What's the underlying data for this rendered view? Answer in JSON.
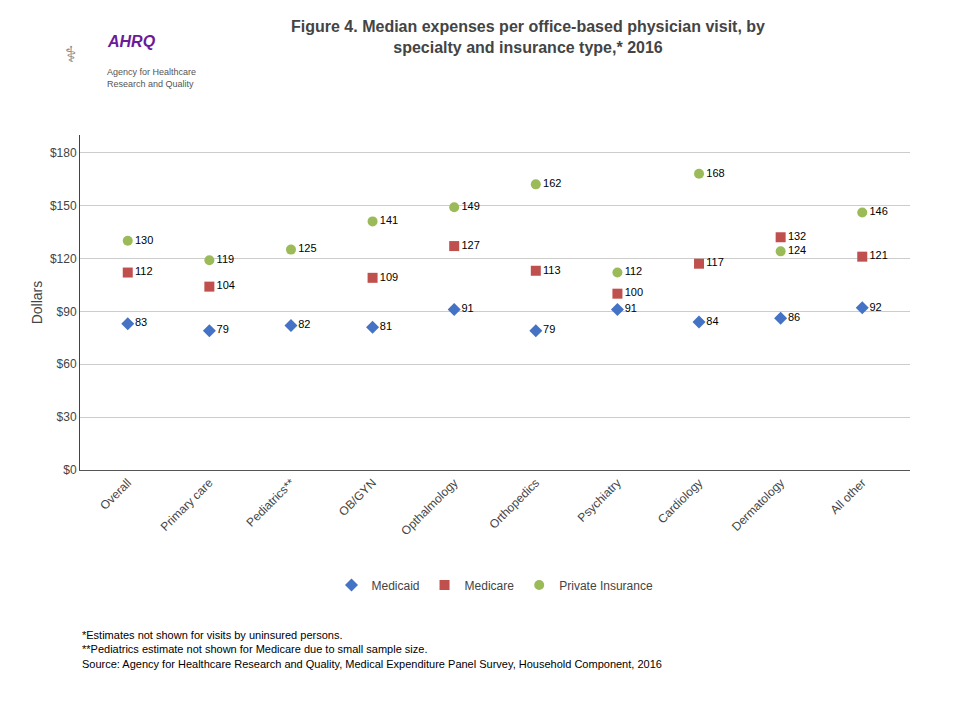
{
  "chart_data": {
    "type": "scatter",
    "title": "Figure 4. Median expenses per office-based physician visit, by\nspecialty and insurance type,* 2016",
    "ylabel": "Dollars",
    "categories": [
      "Overall",
      "Primary care",
      "Pediatrics**",
      "OB/GYN",
      "Opthalmology",
      "Orthopedics",
      "Psychiatry",
      "Cardiology",
      "Dermatology",
      "All other"
    ],
    "series": [
      {
        "name": "Medicaid",
        "color": "#4472c4",
        "marker": "diamond",
        "values": [
          83,
          79,
          82,
          81,
          91,
          79,
          91,
          84,
          86,
          92
        ]
      },
      {
        "name": "Medicare",
        "color": "#c0504d",
        "marker": "square",
        "values": [
          112,
          104,
          null,
          109,
          127,
          113,
          100,
          117,
          132,
          121
        ]
      },
      {
        "name": "Private Insurance",
        "color": "#9bbb59",
        "marker": "circle",
        "values": [
          130,
          119,
          125,
          141,
          149,
          162,
          112,
          168,
          124,
          146
        ]
      }
    ],
    "ylim": [
      0,
      190
    ],
    "yticks": [
      {
        "value": 0,
        "label": "$0"
      },
      {
        "value": 30,
        "label": "$30"
      },
      {
        "value": 60,
        "label": "$60"
      },
      {
        "value": 90,
        "label": "$90"
      },
      {
        "value": 120,
        "label": "$120"
      },
      {
        "value": 150,
        "label": "$150"
      },
      {
        "value": 180,
        "label": "$180"
      }
    ],
    "grid": true,
    "legend": "bottom",
    "data_labels": true,
    "annotations": [
      "⚕",
      "AHRQ",
      "Agency for Healthcare\nResearch and Quality",
      "*Estimates not shown for visits by uninsured persons.\n**Pediatrics estimate not shown for Medicare due to small sample size.\nSource: Agency for Healthcare Research and Quality, Medical Expenditure Panel Survey, Household Component, 2016"
    ]
  }
}
